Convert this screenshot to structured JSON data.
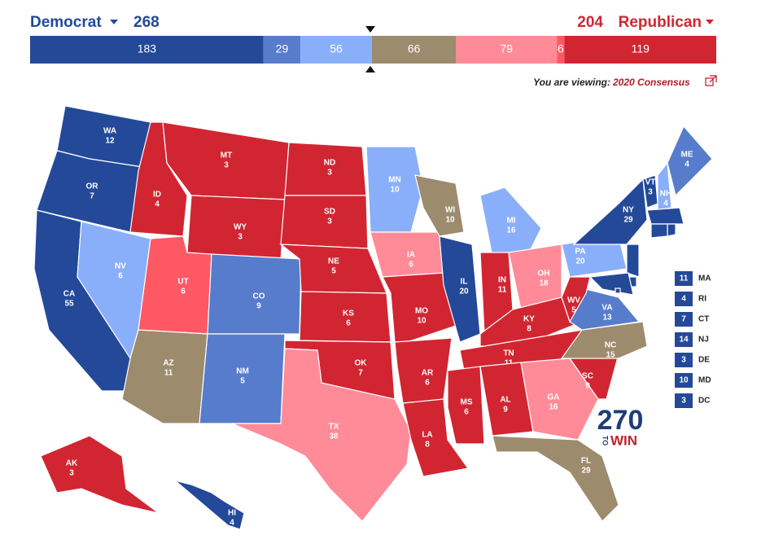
{
  "header": {
    "democrat": {
      "label": "Democrat",
      "total": 268
    },
    "republican": {
      "label": "Republican",
      "total": 204
    }
  },
  "bar": {
    "segments": [
      {
        "value": 183,
        "color": "#244999"
      },
      {
        "value": 29,
        "color": "#577ccc"
      },
      {
        "value": 56,
        "color": "#8aaffa"
      },
      {
        "value": 66,
        "color": "#9c8b6d"
      },
      {
        "value": 79,
        "color": "#ff8b98"
      },
      {
        "value": 6,
        "color": "#ff5865"
      },
      {
        "value": 119,
        "color": "#d22532"
      }
    ]
  },
  "viewing": {
    "prefix": "You are viewing:",
    "map_name": "2020 Consensus"
  },
  "map": {
    "states": [
      {
        "abbr": "WA",
        "ev": 12,
        "color": "#244999"
      },
      {
        "abbr": "OR",
        "ev": 7,
        "color": "#244999"
      },
      {
        "abbr": "CA",
        "ev": 55,
        "color": "#244999"
      },
      {
        "abbr": "NV",
        "ev": 6,
        "color": "#8aaffa"
      },
      {
        "abbr": "ID",
        "ev": 4,
        "color": "#d22532"
      },
      {
        "abbr": "MT",
        "ev": 3,
        "color": "#d22532"
      },
      {
        "abbr": "WY",
        "ev": 3,
        "color": "#d22532"
      },
      {
        "abbr": "UT",
        "ev": 6,
        "color": "#ff5865"
      },
      {
        "abbr": "AZ",
        "ev": 11,
        "color": "#9c8b6d"
      },
      {
        "abbr": "CO",
        "ev": 9,
        "color": "#577ccc"
      },
      {
        "abbr": "NM",
        "ev": 5,
        "color": "#577ccc"
      },
      {
        "abbr": "ND",
        "ev": 3,
        "color": "#d22532"
      },
      {
        "abbr": "SD",
        "ev": 3,
        "color": "#d22532"
      },
      {
        "abbr": "NE",
        "ev": 5,
        "color": "#d22532"
      },
      {
        "abbr": "KS",
        "ev": 6,
        "color": "#d22532"
      },
      {
        "abbr": "OK",
        "ev": 7,
        "color": "#d22532"
      },
      {
        "abbr": "TX",
        "ev": 38,
        "color": "#ff8b98"
      },
      {
        "abbr": "MN",
        "ev": 10,
        "color": "#8aaffa"
      },
      {
        "abbr": "IA",
        "ev": 6,
        "color": "#ff8b98"
      },
      {
        "abbr": "MO",
        "ev": 10,
        "color": "#d22532"
      },
      {
        "abbr": "AR",
        "ev": 6,
        "color": "#d22532"
      },
      {
        "abbr": "LA",
        "ev": 8,
        "color": "#d22532"
      },
      {
        "abbr": "WI",
        "ev": 10,
        "color": "#9c8b6d"
      },
      {
        "abbr": "IL",
        "ev": 20,
        "color": "#244999"
      },
      {
        "abbr": "MI",
        "ev": 16,
        "color": "#8aaffa"
      },
      {
        "abbr": "IN",
        "ev": 11,
        "color": "#d22532"
      },
      {
        "abbr": "OH",
        "ev": 18,
        "color": "#ff8b98"
      },
      {
        "abbr": "KY",
        "ev": 8,
        "color": "#d22532"
      },
      {
        "abbr": "TN",
        "ev": 11,
        "color": "#d22532"
      },
      {
        "abbr": "MS",
        "ev": 6,
        "color": "#d22532"
      },
      {
        "abbr": "AL",
        "ev": 9,
        "color": "#d22532"
      },
      {
        "abbr": "GA",
        "ev": 16,
        "color": "#ff8b98"
      },
      {
        "abbr": "FL",
        "ev": 29,
        "color": "#9c8b6d"
      },
      {
        "abbr": "SC",
        "ev": 9,
        "color": "#d22532"
      },
      {
        "abbr": "NC",
        "ev": 15,
        "color": "#9c8b6d"
      },
      {
        "abbr": "VA",
        "ev": 13,
        "color": "#577ccc"
      },
      {
        "abbr": "WV",
        "ev": 5,
        "color": "#d22532"
      },
      {
        "abbr": "PA",
        "ev": 20,
        "color": "#8aaffa"
      },
      {
        "abbr": "NY",
        "ev": 29,
        "color": "#244999"
      },
      {
        "abbr": "VT",
        "ev": 3,
        "color": "#244999"
      },
      {
        "abbr": "NH",
        "ev": 4,
        "color": "#8aaffa"
      },
      {
        "abbr": "ME",
        "ev": 4,
        "color": "#577ccc"
      },
      {
        "abbr": "AK",
        "ev": 3,
        "color": "#d22532"
      },
      {
        "abbr": "HI",
        "ev": 4,
        "color": "#244999"
      }
    ],
    "small_states": [
      {
        "abbr": "MA",
        "ev": 11,
        "color": "#244999"
      },
      {
        "abbr": "RI",
        "ev": 4,
        "color": "#244999"
      },
      {
        "abbr": "CT",
        "ev": 7,
        "color": "#244999"
      },
      {
        "abbr": "NJ",
        "ev": 14,
        "color": "#244999"
      },
      {
        "abbr": "DE",
        "ev": 3,
        "color": "#244999"
      },
      {
        "abbr": "MD",
        "ev": 10,
        "color": "#244999"
      },
      {
        "abbr": "DC",
        "ev": 3,
        "color": "#244999"
      }
    ]
  },
  "logo": {
    "number": "270",
    "to": "TO",
    "win": "WIN"
  }
}
